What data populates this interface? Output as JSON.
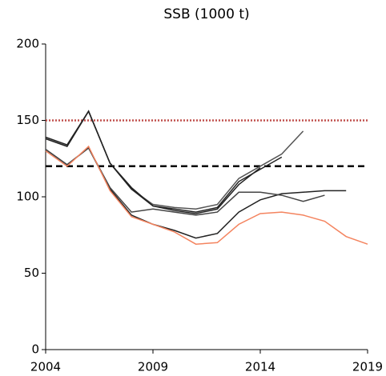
{
  "chart_data": {
    "type": "line",
    "title": "SSB (1000 t)",
    "x": [
      2004,
      2005,
      2006,
      2007,
      2008,
      2009,
      2010,
      2011,
      2012,
      2013,
      2014,
      2015,
      2016,
      2017,
      2018,
      2019
    ],
    "xlim": [
      2004,
      2019
    ],
    "xticks": [
      2004,
      2009,
      2014,
      2019
    ],
    "ylim": [
      0,
      200
    ],
    "yticks": [
      0,
      50,
      100,
      150,
      200
    ],
    "reference_lines": [
      {
        "value": 150,
        "color": "#c0504d",
        "style": "dotted"
      },
      {
        "value": 120,
        "color": "#000000",
        "style": "dashed"
      }
    ],
    "series": [
      {
        "color": "#555555",
        "values": [
          138,
          133,
          156,
          122,
          105,
          95,
          93,
          92,
          95,
          112,
          120,
          128,
          143,
          null,
          null,
          null
        ]
      },
      {
        "color": "#222222",
        "values": [
          138,
          133,
          156,
          122,
          105,
          94,
          92,
          90,
          93,
          110,
          118,
          126,
          null,
          null,
          null,
          null
        ]
      },
      {
        "color": "#222222",
        "values": [
          139,
          134,
          156,
          122,
          106,
          94,
          91,
          89,
          92,
          108,
          119,
          null,
          null,
          null,
          null,
          null
        ]
      },
      {
        "color": "#222222",
        "values": [
          131,
          121,
          132,
          105,
          88,
          82,
          78,
          73,
          76,
          90,
          98,
          102,
          103,
          104,
          104,
          null
        ]
      },
      {
        "color": "#444444",
        "values": [
          131,
          121,
          132,
          106,
          90,
          92,
          90,
          88,
          90,
          103,
          103,
          101,
          97,
          101,
          null,
          null
        ]
      },
      {
        "color": "#f4845f",
        "values": [
          130,
          120,
          133,
          104,
          87,
          82,
          77,
          69,
          70,
          82,
          89,
          90,
          88,
          84,
          74,
          69
        ]
      }
    ]
  }
}
